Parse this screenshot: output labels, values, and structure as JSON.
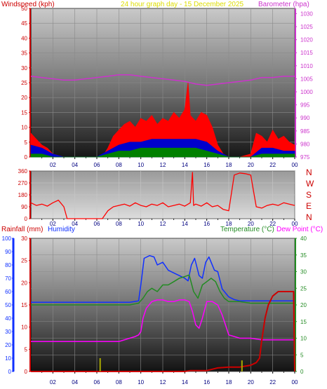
{
  "header": {
    "left_title": "Windspeed (kph)",
    "center_title": "24 hour graph day - 15 December 2025",
    "right_title": "Barometer (hpa)"
  },
  "bottom_header": {
    "rainfall_label": "Rainfall (mm)",
    "humidity_label": "Humidity",
    "temperature_label": "Temperature (°C)",
    "dewpoint_label": "Dew Point (°C)"
  },
  "compass": [
    "N",
    "W",
    "S",
    "E",
    "N"
  ],
  "colors": {
    "wind": "#ff0000",
    "gust": "#ff0000",
    "avg": "#0000cc",
    "calm": "#008000",
    "barometer": "#cc33cc",
    "direction": "#ff0000",
    "humidity": "#1030ff",
    "temperature": "#228b22",
    "dewpoint": "#ff00ff",
    "rain": "#cc0000",
    "rain_rate": "#aaaa00"
  },
  "chart_data": [
    {
      "type": "line",
      "title": "24 hour graph day - 15 December 2025",
      "x_ticks": [
        "02",
        "04",
        "06",
        "08",
        "10",
        "12",
        "14",
        "16",
        "18",
        "20",
        "22",
        "00"
      ],
      "xlim": [
        0,
        24
      ],
      "y_left_label": "Windspeed (kph)",
      "y_left_ticks": [
        0,
        5,
        10,
        15,
        20,
        25,
        30,
        35,
        40,
        45,
        50
      ],
      "ylim_left": [
        0,
        50
      ],
      "y_right_label": "Barometer (hpa)",
      "y_right_ticks": [
        975,
        980,
        985,
        990,
        995,
        1000,
        1005,
        1010,
        1015,
        1020,
        1025,
        1030
      ],
      "ylim_right": [
        975,
        1032
      ],
      "series": [
        {
          "name": "Windspeed (kph)",
          "axis": "left",
          "x": [
            0,
            0.5,
            1,
            1.5,
            2,
            3,
            4,
            5,
            6,
            6.5,
            7,
            7.5,
            8,
            8.5,
            9,
            9.5,
            10,
            10.5,
            11,
            11.5,
            12,
            12.5,
            13,
            13.5,
            14,
            14.3,
            14.5,
            15,
            15.5,
            16,
            16.5,
            17,
            17.5,
            18,
            19,
            20,
            20.5,
            21,
            21.5,
            22,
            22.5,
            23,
            23.5,
            24
          ],
          "y": [
            8,
            6,
            4,
            3,
            1,
            0,
            0,
            0,
            0,
            0,
            3,
            7,
            9,
            11,
            12,
            10,
            13,
            12,
            14,
            11,
            13,
            12,
            15,
            13,
            16,
            25,
            14,
            12,
            15,
            14,
            10,
            4,
            1,
            0,
            0,
            1,
            8,
            7,
            5,
            9,
            6,
            7,
            5,
            4
          ]
        },
        {
          "name": "Average (kph)",
          "axis": "left",
          "x": [
            0,
            1,
            2,
            3,
            6,
            7,
            8,
            9,
            10,
            11,
            12,
            13,
            14,
            15,
            16,
            17,
            18,
            20,
            21,
            22,
            23,
            24
          ],
          "y": [
            4,
            3,
            1,
            0,
            0,
            2,
            4,
            5,
            5,
            6,
            6,
            6,
            6,
            6,
            5,
            2,
            0,
            0,
            3,
            3,
            2,
            2
          ]
        },
        {
          "name": "Calm",
          "axis": "left",
          "x": [
            0,
            1,
            2,
            3,
            6,
            7,
            8,
            9,
            10,
            11,
            12,
            13,
            14,
            15,
            16,
            17,
            18,
            20,
            21,
            22,
            23,
            24
          ],
          "y": [
            1,
            1,
            0,
            0,
            0,
            1,
            2,
            2,
            3,
            3,
            3,
            3,
            3,
            3,
            2,
            1,
            0,
            0,
            1,
            1,
            1,
            1
          ]
        },
        {
          "name": "Barometer (hpa)",
          "axis": "right",
          "x": [
            0,
            1,
            2,
            3,
            4,
            5,
            6,
            7,
            8,
            9,
            10,
            11,
            12,
            13,
            14,
            15,
            16,
            17,
            18,
            19,
            20,
            21,
            22,
            23,
            24
          ],
          "y": [
            1006,
            1005.5,
            1005,
            1004.5,
            1004.5,
            1005,
            1005.5,
            1006,
            1006.5,
            1006.5,
            1006,
            1005.5,
            1005,
            1004.5,
            1004,
            1003,
            1002.5,
            1003,
            1003.5,
            1004,
            1004.5,
            1005.5,
            1005.5,
            1006,
            1006
          ]
        }
      ]
    },
    {
      "type": "line",
      "x_ticks": [
        "02",
        "04",
        "06",
        "08",
        "10",
        "12",
        "14",
        "16",
        "18",
        "20",
        "22",
        "00"
      ],
      "xlim": [
        0,
        24
      ],
      "y_ticks": [
        0,
        90,
        180,
        270,
        360
      ],
      "ylim": [
        0,
        360
      ],
      "series": [
        {
          "name": "Wind direction",
          "x": [
            0,
            0.5,
            1,
            1.5,
            2,
            2.5,
            3,
            3.3,
            4,
            5,
            6,
            6.5,
            7,
            7.5,
            8,
            8.5,
            9,
            9.5,
            10,
            10.5,
            11,
            11.5,
            12,
            12.5,
            13,
            13.5,
            14,
            14.5,
            14.7,
            14.8,
            15,
            15.5,
            16,
            16.5,
            17,
            17.5,
            18,
            18.5,
            19,
            19.5,
            20,
            20.5,
            21,
            21.5,
            22,
            22.5,
            23,
            23.5,
            24
          ],
          "y": [
            120,
            100,
            110,
            95,
            120,
            140,
            90,
            0,
            0,
            0,
            0,
            0,
            60,
            90,
            100,
            110,
            95,
            120,
            100,
            90,
            110,
            100,
            120,
            90,
            100,
            110,
            95,
            120,
            350,
            100,
            110,
            95,
            120,
            90,
            100,
            70,
            60,
            330,
            345,
            340,
            330,
            90,
            80,
            100,
            110,
            100,
            120,
            110,
            100
          ]
        }
      ]
    },
    {
      "type": "line",
      "x_ticks": [
        "02",
        "04",
        "06",
        "08",
        "10",
        "12",
        "14",
        "16",
        "18",
        "20",
        "22",
        "00"
      ],
      "xlim": [
        0,
        24
      ],
      "y_left1_label": "Humidity",
      "y_left1_ticks": [
        0,
        10,
        20,
        30,
        40,
        50,
        60,
        70,
        80,
        90,
        100
      ],
      "ylim_left1": [
        0,
        100
      ],
      "y_left2_label": "Rainfall (mm)",
      "y_left2_ticks": [
        0,
        5,
        10,
        15,
        20,
        25,
        30
      ],
      "ylim_left2": [
        0,
        30
      ],
      "y_right_label": "Temperature (°C)",
      "y_right_ticks": [
        0,
        5,
        10,
        15,
        20,
        25,
        30,
        35,
        40
      ],
      "ylim_right": [
        0,
        40
      ],
      "series": [
        {
          "name": "Humidity",
          "axis": "left1",
          "x": [
            0,
            2,
            4,
            6,
            8,
            9,
            9.8,
            10,
            10.3,
            10.8,
            11.2,
            11.5,
            12,
            12.5,
            13,
            13.5,
            14,
            14.3,
            14.6,
            14.9,
            15.3,
            15.6,
            15.9,
            16.2,
            16.4,
            16.7,
            17,
            17.4,
            18,
            18.5,
            19,
            20,
            22,
            24
          ],
          "y": [
            52,
            52,
            52,
            52,
            52,
            52,
            53,
            65,
            85,
            87,
            86,
            80,
            82,
            76,
            74,
            72,
            70,
            68,
            80,
            85,
            72,
            70,
            82,
            86,
            82,
            76,
            75,
            62,
            56,
            54,
            53,
            53,
            53,
            53
          ]
        },
        {
          "name": "Temperature (°C)",
          "axis": "right",
          "x": [
            0,
            2,
            4,
            6,
            8,
            9,
            9.8,
            10.2,
            10.6,
            11,
            11.5,
            12,
            12.5,
            13,
            13.5,
            14,
            14.4,
            14.8,
            15.2,
            15.6,
            16,
            16.4,
            16.8,
            17.2,
            17.6,
            18,
            19,
            20,
            22,
            24
          ],
          "y": [
            20,
            20,
            20,
            20,
            20,
            20,
            20.5,
            22,
            24,
            25,
            24,
            26,
            26,
            27,
            28,
            28.5,
            29,
            24,
            22,
            26,
            27,
            28,
            27,
            24,
            22,
            21,
            21,
            20.5,
            20.5,
            20.5
          ]
        },
        {
          "name": "Dew Point (°C)",
          "axis": "right",
          "x": [
            0,
            2,
            4,
            6,
            7,
            8,
            8.5,
            9,
            9.5,
            9.8,
            10,
            10.2,
            10.5,
            11,
            11.5,
            12,
            12.5,
            13,
            13.5,
            14,
            14.4,
            14.7,
            15,
            15.3,
            15.6,
            16,
            16.5,
            17,
            17.4,
            17.8,
            18,
            19,
            20,
            21,
            22,
            24
          ],
          "y": [
            9,
            9,
            9,
            9,
            9,
            9,
            9.5,
            10,
            10.5,
            11,
            12,
            16,
            19,
            21,
            21.5,
            21.5,
            21,
            21,
            21.5,
            21.5,
            21,
            18,
            14,
            13,
            16,
            21,
            21,
            20,
            17,
            13,
            11,
            10,
            10,
            9.5,
            9.5,
            9.5
          ]
        },
        {
          "name": "Rainfall (mm)",
          "axis": "left2",
          "x": [
            0,
            6,
            10,
            14,
            14.5,
            15,
            16,
            16.5,
            17,
            18,
            19,
            19.5,
            20,
            20.5,
            20.8,
            21,
            21.3,
            21.6,
            22,
            22.5,
            23,
            23.5,
            23.9,
            24
          ],
          "y": [
            0,
            0,
            0,
            0,
            0.2,
            0.2,
            0.2,
            0.5,
            0.8,
            1,
            1,
            1.2,
            1.4,
            2,
            3,
            7,
            12,
            15,
            17,
            18,
            18,
            18,
            18,
            0
          ]
        },
        {
          "name": "Rain rate",
          "axis": "left2",
          "x": [
            6.3,
            19.2
          ],
          "y": [
            3,
            2.5
          ]
        }
      ]
    }
  ]
}
